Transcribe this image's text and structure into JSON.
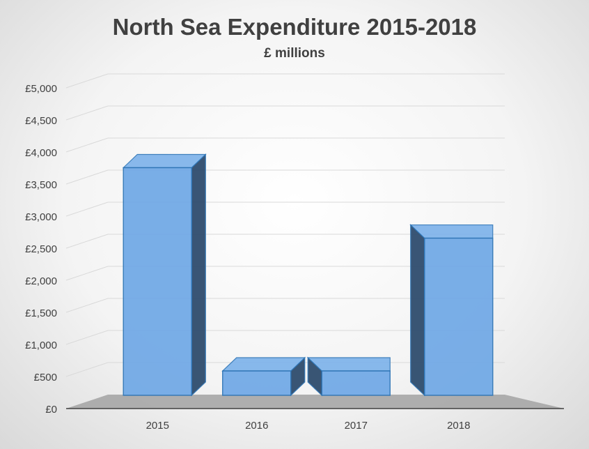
{
  "chart_data": {
    "type": "bar",
    "title": "North Sea Expenditure 2015-2018",
    "subtitle": "£ millions",
    "xlabel": "",
    "ylabel": "",
    "categories": [
      "2015",
      "2016",
      "2017",
      "2018"
    ],
    "values": [
      4200,
      450,
      450,
      2900
    ],
    "ylim": [
      0,
      5000
    ],
    "yticks": [
      0,
      500,
      1000,
      1500,
      2000,
      2500,
      3000,
      3500,
      4000,
      4500,
      5000
    ],
    "ytick_labels": [
      "£0",
      "£500",
      "£1,000",
      "£1,500",
      "£2,000",
      "£2,500",
      "£3,000",
      "£3,500",
      "£4,000",
      "£4,500",
      "£5,000"
    ],
    "grid": true,
    "legend": "none",
    "style": "3d-column",
    "colors": {
      "bar_front": "#6fa8e6",
      "bar_side": "#2f4d6e",
      "bar_top": "#7cb2ea",
      "bar_edge": "#2e75b6",
      "floor": "#a6a6a6",
      "grid": "#d9d9d9",
      "text": "#404040"
    }
  }
}
